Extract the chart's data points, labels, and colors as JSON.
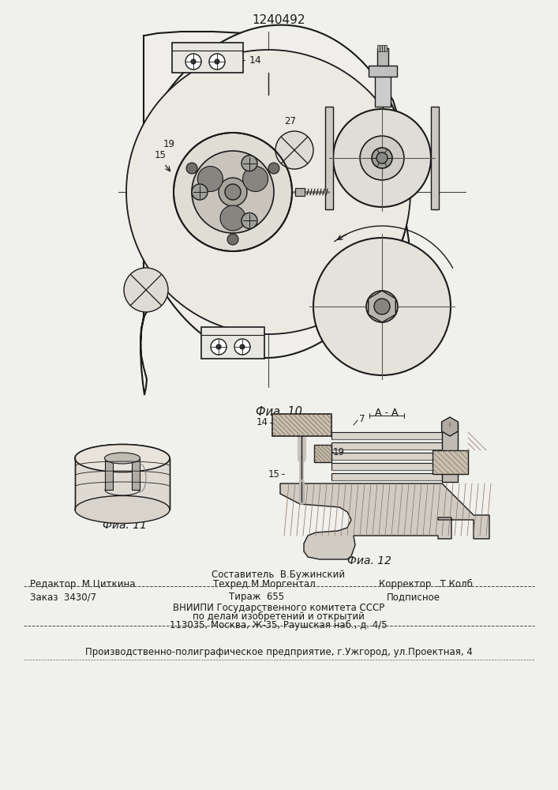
{
  "patent_number": "1240492",
  "fig10_caption": "Фиа. 10",
  "fig11_caption": "Фиа. 11",
  "fig12_caption": "Фиа. 12",
  "fig12_label": "А - А",
  "text_sostav": "Составитель  В.Бужинский",
  "text_editor": "Редактор  М.Циткина",
  "text_tehred": "Техред.М.Моргентал",
  "text_korr": "Корректор  .Т.Колб",
  "text_zakaz": "Заказ  3430/7",
  "text_tirazh": "Тираж  655",
  "text_podp": "Подписное",
  "text_vniipи": "ВНИИПИ Государственного комитета СССР",
  "text_delam": "по делам изобретений и открытий",
  "text_addr": "113035, Москва, Ж-35, Раушская наб., д. 4/5",
  "text_prod": "Производственно-полиграфическое предприятие, г.Ужгород, ул.Проектная, 4",
  "lc": "#1a1a1a",
  "bg": "#f0f0ec"
}
